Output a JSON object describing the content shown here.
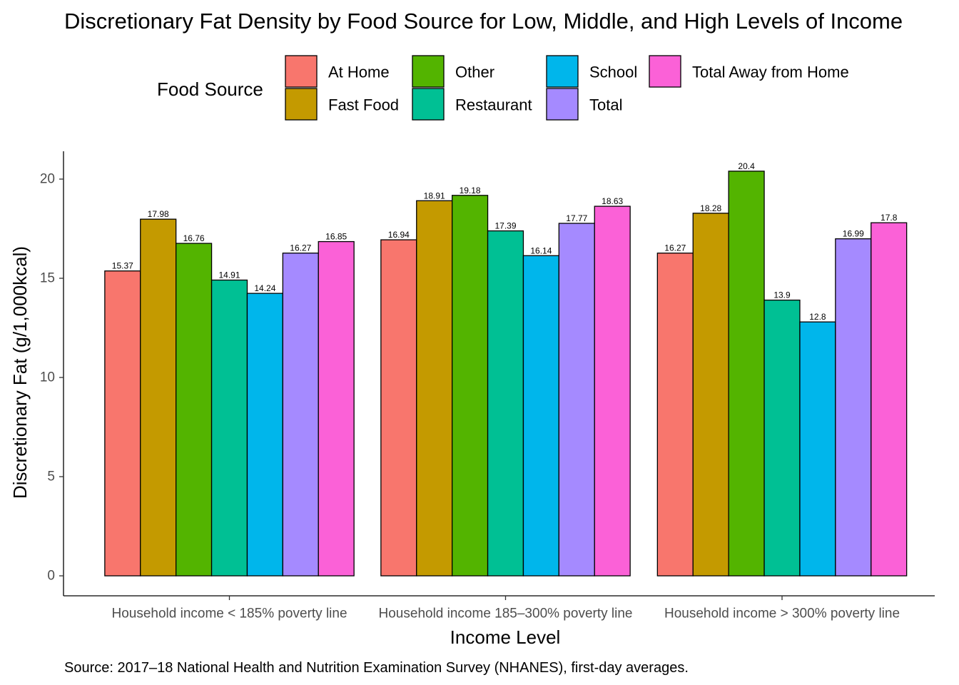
{
  "chart_data": {
    "type": "bar",
    "title": "Discretionary Fat Density by Food Source for Low, Middle, and High Levels of Income",
    "xlabel": "Income Level",
    "ylabel": "Discretionary Fat (g/1,000kcal)",
    "caption": "Source: 2017–18 National Health and Nutrition Examination Survey (NHANES), first-day averages.",
    "ylim": [
      0,
      21.5
    ],
    "yticks": [
      "0",
      "5",
      "10",
      "15",
      "20"
    ],
    "grid": false,
    "legend": {
      "title": "Food Source",
      "position": "top"
    },
    "categories": [
      "Household income < 185% poverty line",
      "Household income 185–300% poverty line",
      "Household income > 300% poverty line"
    ],
    "series": [
      {
        "name": "At Home",
        "color": "#F8766D",
        "values": [
          15.37,
          16.94,
          16.27
        ]
      },
      {
        "name": "Fast Food",
        "color": "#C49A00",
        "values": [
          17.98,
          18.91,
          18.28
        ]
      },
      {
        "name": "Other",
        "color": "#53B400",
        "values": [
          16.76,
          19.18,
          20.4
        ]
      },
      {
        "name": "Restaurant",
        "color": "#00C094",
        "values": [
          14.91,
          17.39,
          13.9
        ]
      },
      {
        "name": "School",
        "color": "#00B6EB",
        "values": [
          14.24,
          16.14,
          12.8
        ]
      },
      {
        "name": "Total",
        "color": "#A58AFF",
        "values": [
          16.27,
          17.77,
          16.99
        ]
      },
      {
        "name": "Total Away from Home",
        "color": "#FB61D7",
        "values": [
          16.85,
          18.63,
          17.8
        ]
      }
    ]
  }
}
